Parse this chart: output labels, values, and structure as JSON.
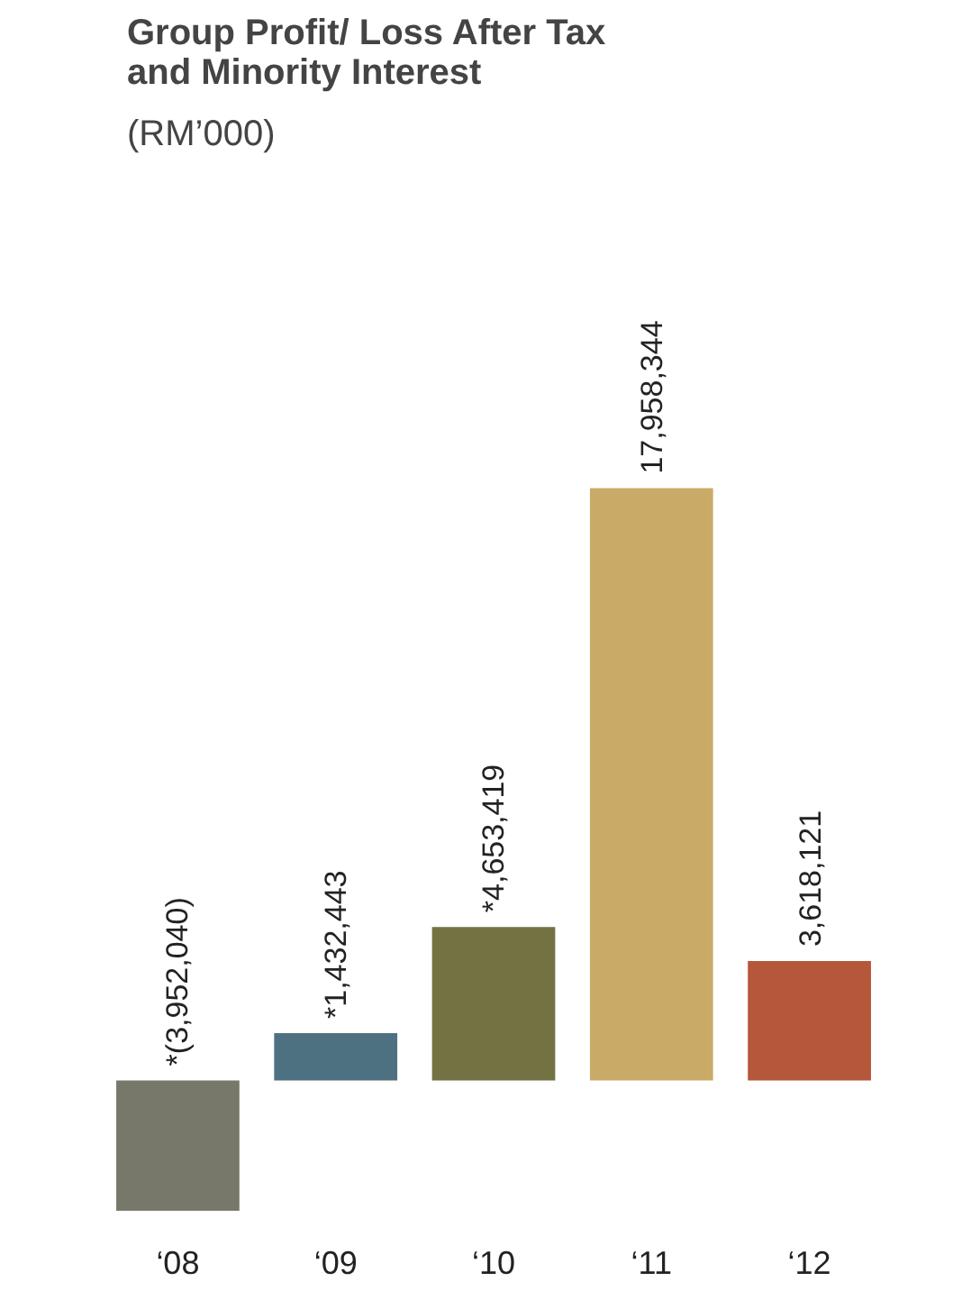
{
  "chart_data": {
    "type": "bar",
    "title": "Group Profit/ Loss After Tax\nand Minority Interest",
    "subtitle": "(RM’000)",
    "categories": [
      "‘08",
      "‘09",
      "‘10",
      "‘11",
      "‘12"
    ],
    "values": [
      -3952040,
      1432443,
      4653419,
      17958344,
      3618121
    ],
    "colors": [
      "#77776a",
      "#4e7182",
      "#737242",
      "#c9ab67",
      "#b5573a"
    ],
    "value_labels": [
      "*(3,952,040)",
      "*1,432,443",
      "*4,653,419",
      "17,958,344",
      "3,618,121"
    ]
  }
}
